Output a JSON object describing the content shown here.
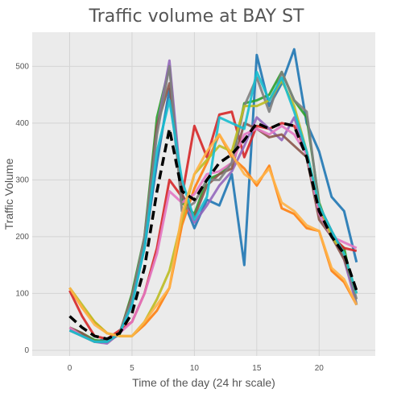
{
  "chart_data": {
    "type": "line",
    "title": "Traffic volume at BAY ST",
    "xlabel": "Time of the day (24 hr scale)",
    "ylabel": "Traffic Volume",
    "xlim": [
      -3,
      24.5
    ],
    "ylim": [
      -10,
      560
    ],
    "xticks": [
      0,
      5,
      10,
      15,
      20
    ],
    "yticks": [
      0,
      100,
      200,
      300,
      400,
      500
    ],
    "grid": true,
    "x": [
      0,
      1,
      2,
      3,
      4,
      5,
      6,
      7,
      8,
      9,
      10,
      11,
      12,
      13,
      14,
      15,
      16,
      17,
      18,
      19,
      20,
      21,
      22,
      23
    ],
    "series": [
      {
        "color": "#1f77b4",
        "dashed": false,
        "values": [
          35,
          28,
          15,
          20,
          28,
          90,
          180,
          330,
          460,
          270,
          215,
          265,
          255,
          310,
          150,
          520,
          430,
          470,
          530,
          400,
          350,
          270,
          245,
          155
        ]
      },
      {
        "color": "#ff7f0e",
        "dashed": false,
        "values": [
          110,
          75,
          50,
          30,
          25,
          25,
          45,
          70,
          110,
          220,
          285,
          330,
          380,
          340,
          320,
          290,
          325,
          250,
          240,
          215,
          210,
          140,
          120,
          80
        ]
      },
      {
        "color": "#2ca02c",
        "dashed": false,
        "values": [
          40,
          30,
          18,
          15,
          28,
          100,
          200,
          410,
          500,
          260,
          240,
          300,
          310,
          330,
          435,
          440,
          450,
          490,
          440,
          410,
          260,
          200,
          180,
          80
        ]
      },
      {
        "color": "#d62728",
        "dashed": false,
        "values": [
          105,
          60,
          25,
          20,
          35,
          50,
          100,
          180,
          300,
          270,
          395,
          340,
          415,
          420,
          340,
          395,
          390,
          400,
          395,
          350,
          250,
          200,
          180,
          175
        ]
      },
      {
        "color": "#9467bd",
        "dashed": false,
        "values": [
          35,
          25,
          15,
          12,
          30,
          80,
          195,
          390,
          510,
          275,
          225,
          255,
          290,
          315,
          360,
          410,
          390,
          370,
          410,
          345,
          255,
          210,
          160,
          80
        ]
      },
      {
        "color": "#8c564b",
        "dashed": false,
        "values": [
          40,
          30,
          15,
          15,
          30,
          95,
          195,
          395,
          470,
          275,
          235,
          290,
          310,
          320,
          400,
          390,
          375,
          380,
          360,
          340,
          230,
          200,
          160,
          100
        ]
      },
      {
        "color": "#e377c2",
        "dashed": false,
        "values": [
          40,
          25,
          15,
          15,
          30,
          50,
          100,
          170,
          280,
          260,
          275,
          310,
          315,
          330,
          380,
          390,
          380,
          395,
          380,
          345,
          240,
          200,
          190,
          180
        ]
      },
      {
        "color": "#7f7f7f",
        "dashed": false,
        "values": [
          35,
          25,
          15,
          15,
          30,
          90,
          200,
          380,
          500,
          245,
          260,
          300,
          300,
          330,
          430,
          480,
          420,
          490,
          440,
          420,
          255,
          210,
          170,
          90
        ]
      },
      {
        "color": "#bcbd22",
        "dashed": false,
        "values": [
          110,
          80,
          50,
          30,
          25,
          25,
          50,
          90,
          140,
          230,
          310,
          335,
          360,
          350,
          430,
          430,
          440,
          475,
          430,
          350,
          255,
          200,
          170,
          100
        ]
      },
      {
        "color": "#17becf",
        "dashed": false,
        "values": [
          35,
          25,
          15,
          15,
          30,
          80,
          180,
          350,
          440,
          300,
          230,
          270,
          410,
          400,
          390,
          490,
          440,
          480,
          420,
          350,
          255,
          210,
          170,
          100
        ]
      },
      {
        "color": "#ffb347",
        "dashed": false,
        "values": [
          110,
          75,
          45,
          30,
          25,
          25,
          50,
          80,
          110,
          240,
          310,
          350,
          380,
          345,
          310,
          295,
          320,
          260,
          245,
          220,
          210,
          145,
          125,
          80
        ]
      },
      {
        "color": "#000000",
        "dashed": true,
        "values": [
          60,
          40,
          25,
          20,
          30,
          65,
          145,
          280,
          390,
          280,
          265,
          300,
          330,
          345,
          370,
          400,
          390,
          400,
          395,
          340,
          245,
          200,
          170,
          105
        ]
      }
    ]
  }
}
